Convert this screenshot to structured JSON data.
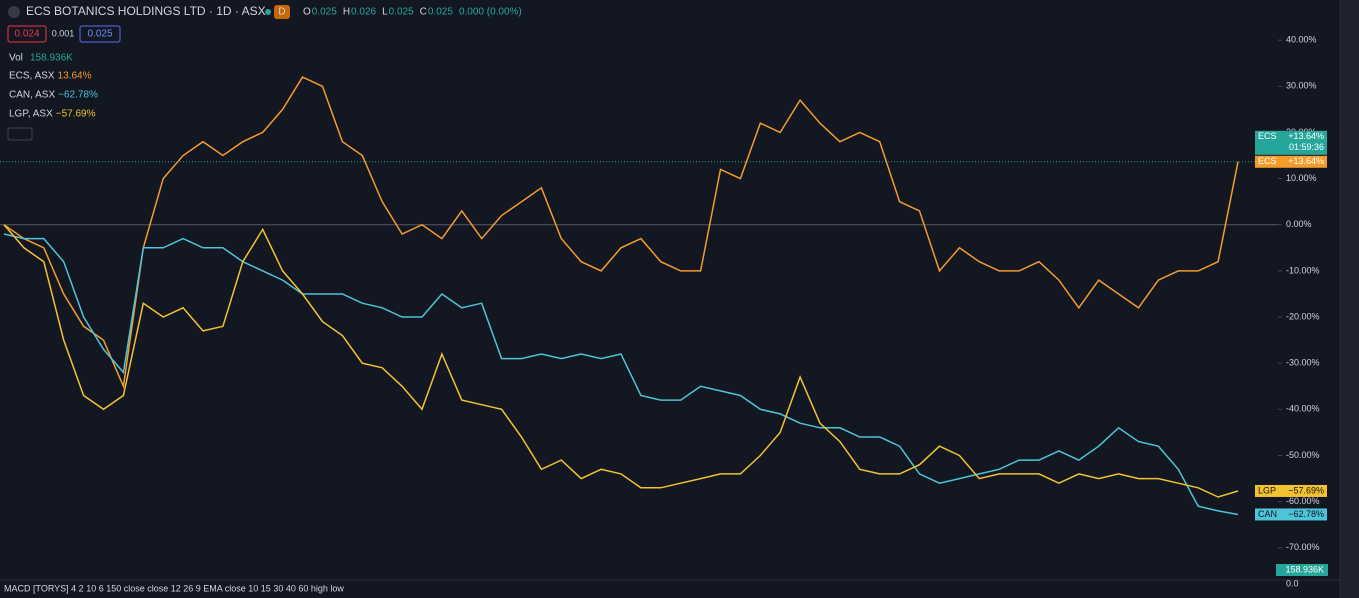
{
  "chart_data": {
    "type": "line",
    "title": "ECS BOTANICS HOLDINGS LTD · 1D · ASX",
    "interval_badge": "D",
    "ohlc": [
      {
        "key": "O",
        "value": "0.025"
      },
      {
        "key": "H",
        "value": "0.026"
      },
      {
        "key": "L",
        "value": "0.025"
      },
      {
        "key": "C",
        "value": "0.025"
      }
    ],
    "change_text": "0.000 (0.00%)",
    "bid": "0.024",
    "spread": "0.001",
    "ask": "0.025",
    "volume_label": "Vol",
    "volume_value": "158.936K",
    "price_tag": {
      "label": "ECS",
      "value_label": "+13.64%",
      "countdown": "01:59:36",
      "color": "#26a69a"
    },
    "ylim": [
      -75.9,
      48.7
    ],
    "yticks": [
      {
        "value": 40,
        "label": "40.00%"
      },
      {
        "value": 30,
        "label": "30.00%"
      },
      {
        "value": 20,
        "label": "20.00%"
      },
      {
        "value": 10,
        "label": "10.00%"
      },
      {
        "value": 0,
        "label": "0.00%"
      },
      {
        "value": -10,
        "label": "-10.00%"
      },
      {
        "value": -20,
        "label": "-20.00%"
      },
      {
        "value": -30,
        "label": "-30.00%"
      },
      {
        "value": -40,
        "label": "-40.00%"
      },
      {
        "value": -50,
        "label": "-50.00%"
      },
      {
        "value": -60,
        "label": "-60.00%"
      },
      {
        "value": -70,
        "label": "-70.00%"
      }
    ],
    "series": [
      {
        "name": "ECS",
        "legend": "ECS, ASX",
        "change_label": "13.64%",
        "tag_label": "+13.64%",
        "color": "#f39c2b",
        "values": [
          0,
          -3,
          -5,
          -15,
          -22,
          -25,
          -35,
          -5,
          10,
          15,
          18,
          15,
          18,
          20,
          25,
          32,
          30,
          18,
          15,
          5,
          -2,
          0,
          -3,
          3,
          -3,
          2,
          5,
          8,
          -3,
          -8,
          -10,
          -5,
          -3,
          -8,
          -10,
          -10,
          12,
          10,
          22,
          20,
          27,
          22,
          18,
          20,
          18,
          5,
          3,
          -10,
          -5,
          -8,
          -10,
          -10,
          -8,
          -12,
          -18,
          -12,
          -15,
          -18,
          -12,
          -10,
          -10,
          -8,
          13.64
        ]
      },
      {
        "name": "CAN",
        "legend": "CAN, ASX",
        "change_label": "−62.78%",
        "tag_label": "−62.78%",
        "color": "#4dc4d8",
        "values": [
          -2,
          -3,
          -3,
          -8,
          -20,
          -27,
          -32,
          -5,
          -5,
          -3,
          -5,
          -5,
          -8,
          -10,
          -12,
          -15,
          -15,
          -15,
          -17,
          -18,
          -20,
          -20,
          -15,
          -18,
          -17,
          -29,
          -29,
          -28,
          -29,
          -28,
          -29,
          -28,
          -37,
          -38,
          -38,
          -35,
          -36,
          -37,
          -40,
          -41,
          -43,
          -44,
          -44,
          -46,
          -46,
          -48,
          -54,
          -56,
          -55,
          -54,
          -53,
          -51,
          -51,
          -49,
          -51,
          -48,
          -44,
          -47,
          -48,
          -53,
          -61,
          -62,
          -62.78
        ]
      },
      {
        "name": "LGP",
        "legend": "LGP, ASX",
        "change_label": "−57.69%",
        "tag_label": "−57.69%",
        "color": "#f2c230",
        "values": [
          0,
          -5,
          -8,
          -25,
          -37,
          -40,
          -37,
          -17,
          -20,
          -18,
          -23,
          -22,
          -8,
          -1,
          -10,
          -15,
          -21,
          -24,
          -30,
          -31,
          -35,
          -40,
          -28,
          -38,
          -39,
          -40,
          -46,
          -53,
          -51,
          -55,
          -53,
          -54,
          -57,
          -57,
          -56,
          -55,
          -54,
          -54,
          -50,
          -45,
          -33,
          -43,
          -47,
          -53,
          -54,
          -54,
          -52,
          -48,
          -50,
          -55,
          -54,
          -54,
          -54,
          -56,
          -54,
          -55,
          -54,
          -55,
          -55,
          -56,
          -57,
          -59,
          -57.69
        ]
      }
    ],
    "indicator": "MACD [TORYS] 4 2 10 6 150 close close 12 26 9 EMA close 10 15 30 40 60 high low",
    "indicator_axis": "0.0"
  }
}
